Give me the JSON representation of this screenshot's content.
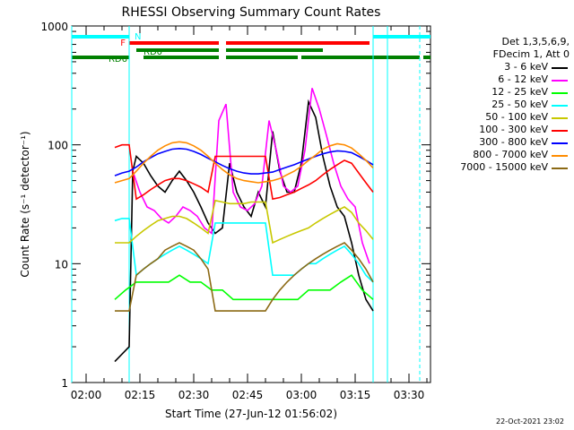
{
  "chart_data": {
    "type": "line",
    "title": "RHESSI Observing Summary Count Rates",
    "xlabel": "Start Time (27-Jun-12 01:56:02)",
    "ylabel": "Count Rate (s⁻¹ detector⁻¹)",
    "ylog": true,
    "ylim": [
      1,
      1000
    ],
    "xlim_minutes_after_01_56": [
      0,
      100
    ],
    "yticks": [
      "1",
      "10",
      "100",
      "1000"
    ],
    "xtick_labels": [
      "02:00",
      "02:15",
      "02:30",
      "02:45",
      "03:00",
      "03:15",
      "03:30"
    ],
    "xtick_minutes": [
      4,
      19,
      34,
      49,
      64,
      79,
      94
    ],
    "legend_header": [
      "Det 1,3,5,6,9,",
      "FDecim 1, Att 0"
    ],
    "series": [
      {
        "name": "3 - 6 keV",
        "color": "#000000",
        "x": [
          12,
          16,
          17,
          18,
          20,
          22,
          24,
          26,
          28,
          30,
          32,
          34,
          36,
          38,
          40,
          42,
          44,
          46,
          48,
          50,
          52,
          54,
          56,
          58,
          60,
          62,
          64,
          66,
          68,
          70,
          72,
          74,
          76,
          78,
          80,
          82,
          84
        ],
        "y": [
          1.5,
          2,
          60,
          80,
          70,
          55,
          45,
          40,
          50,
          60,
          50,
          40,
          30,
          22,
          18,
          20,
          70,
          40,
          30,
          25,
          40,
          30,
          130,
          60,
          40,
          40,
          70,
          230,
          170,
          80,
          45,
          30,
          25,
          15,
          8,
          5,
          4
        ]
      },
      {
        "name": "6 - 12 keV",
        "color": "#ff00ff",
        "x": [
          17,
          19,
          21,
          23,
          25,
          27,
          29,
          31,
          33,
          35,
          37,
          39,
          41,
          43,
          45,
          47,
          49,
          51,
          53,
          55,
          57,
          59,
          61,
          63,
          65,
          67,
          69,
          71,
          73,
          75,
          77,
          79,
          81,
          83
        ],
        "y": [
          60,
          40,
          30,
          28,
          24,
          22,
          25,
          30,
          28,
          25,
          20,
          18,
          160,
          220,
          40,
          30,
          28,
          32,
          45,
          160,
          90,
          45,
          40,
          45,
          90,
          300,
          200,
          120,
          70,
          45,
          35,
          30,
          15,
          10
        ]
      },
      {
        "name": "12 - 25 keV",
        "color": "#00ff00",
        "x": [
          12,
          15,
          18,
          21,
          24,
          27,
          30,
          33,
          36,
          39,
          42,
          45,
          48,
          51,
          54,
          57,
          60,
          63,
          66,
          69,
          72,
          75,
          78,
          81,
          84
        ],
        "y": [
          5,
          6,
          7,
          7,
          7,
          7,
          8,
          7,
          7,
          6,
          6,
          5,
          5,
          5,
          5,
          5,
          5,
          5,
          6,
          6,
          6,
          7,
          8,
          6,
          5
        ]
      },
      {
        "name": "25 - 50 keV",
        "color": "#00ffff",
        "x": [
          12,
          14,
          16,
          18,
          20,
          22,
          24,
          26,
          28,
          30,
          32,
          34,
          36,
          38,
          40,
          42,
          44,
          46,
          48,
          50,
          52,
          54,
          56,
          58,
          60,
          62,
          64,
          66,
          68,
          70,
          72,
          74,
          76,
          78,
          80,
          82,
          84
        ],
        "y": [
          23,
          24,
          24,
          8,
          9,
          10,
          11,
          12,
          13,
          14,
          13,
          12,
          11,
          10,
          22,
          22,
          22,
          22,
          22,
          22,
          22,
          22,
          8,
          8,
          8,
          8,
          9,
          10,
          10,
          11,
          12,
          13,
          14,
          12,
          10,
          8,
          7
        ]
      },
      {
        "name": "50 - 100 keV",
        "color": "#c8c800",
        "x": [
          12,
          14,
          16,
          18,
          20,
          22,
          24,
          26,
          28,
          30,
          32,
          34,
          36,
          38,
          40,
          42,
          44,
          46,
          48,
          50,
          52,
          54,
          56,
          58,
          60,
          62,
          64,
          66,
          68,
          70,
          72,
          74,
          76,
          78,
          80,
          82,
          84
        ],
        "y": [
          15,
          15,
          15,
          17,
          19,
          21,
          23,
          24,
          25,
          25,
          24,
          22,
          20,
          18,
          34,
          33,
          32,
          32,
          32,
          33,
          33,
          33,
          15,
          16,
          17,
          18,
          19,
          20,
          22,
          24,
          26,
          28,
          30,
          27,
          22,
          19,
          16
        ]
      },
      {
        "name": "100 - 300 keV",
        "color": "#ff0000",
        "x": [
          12,
          14,
          16,
          18,
          20,
          22,
          24,
          26,
          28,
          30,
          32,
          34,
          36,
          38,
          40,
          42,
          44,
          46,
          48,
          50,
          52,
          54,
          56,
          58,
          60,
          62,
          64,
          66,
          68,
          70,
          72,
          74,
          76,
          78,
          80,
          82,
          84
        ],
        "y": [
          95,
          100,
          100,
          35,
          38,
          42,
          46,
          50,
          52,
          52,
          50,
          47,
          44,
          40,
          80,
          80,
          80,
          80,
          80,
          80,
          80,
          80,
          35,
          36,
          38,
          40,
          43,
          46,
          50,
          56,
          62,
          68,
          74,
          70,
          58,
          48,
          40
        ]
      },
      {
        "name": "300 - 800 keV",
        "color": "#0000ff",
        "x": [
          12,
          14,
          16,
          18,
          20,
          22,
          24,
          26,
          28,
          30,
          32,
          34,
          36,
          38,
          40,
          42,
          44,
          46,
          48,
          50,
          52,
          54,
          56,
          58,
          60,
          62,
          64,
          66,
          68,
          70,
          72,
          74,
          76,
          78,
          80,
          82,
          84
        ],
        "y": [
          55,
          58,
          60,
          65,
          72,
          78,
          84,
          88,
          92,
          93,
          92,
          88,
          83,
          77,
          72,
          67,
          63,
          60,
          58,
          57,
          57,
          58,
          59,
          62,
          65,
          68,
          72,
          76,
          80,
          84,
          87,
          89,
          88,
          86,
          80,
          74,
          68
        ]
      },
      {
        "name": "800 - 7000 keV",
        "color": "#ff8c00",
        "x": [
          12,
          14,
          16,
          18,
          20,
          22,
          24,
          26,
          28,
          30,
          32,
          34,
          36,
          38,
          40,
          42,
          44,
          46,
          48,
          50,
          52,
          54,
          56,
          58,
          60,
          62,
          64,
          66,
          68,
          70,
          72,
          74,
          76,
          78,
          80,
          82,
          84
        ],
        "y": [
          48,
          50,
          52,
          60,
          70,
          80,
          90,
          98,
          104,
          106,
          104,
          98,
          90,
          80,
          70,
          62,
          56,
          52,
          50,
          49,
          48,
          49,
          50,
          52,
          56,
          60,
          66,
          74,
          82,
          92,
          98,
          102,
          100,
          94,
          84,
          74,
          64
        ]
      },
      {
        "name": "7000 - 15000 keV",
        "color": "#8b6914",
        "x": [
          12,
          14,
          16,
          18,
          20,
          22,
          24,
          26,
          28,
          30,
          32,
          34,
          36,
          38,
          40,
          42,
          44,
          46,
          48,
          50,
          52,
          54,
          56,
          58,
          60,
          62,
          64,
          66,
          68,
          70,
          72,
          74,
          76,
          78,
          80,
          82,
          84
        ],
        "y": [
          4,
          4,
          4,
          8,
          9,
          10,
          11,
          13,
          14,
          15,
          14,
          13,
          11,
          9,
          4,
          4,
          4,
          4,
          4,
          4,
          4,
          4,
          5,
          6,
          7,
          8,
          9,
          10,
          11,
          12,
          13,
          14,
          15,
          13,
          11,
          9,
          7
        ]
      }
    ],
    "state_bars": [
      {
        "label": "N",
        "color": "#00ffff",
        "segments": [
          [
            0,
            16
          ],
          [
            84,
            100
          ]
        ]
      },
      {
        "label": "F",
        "color": "#ff0000",
        "segments": [
          [
            16,
            41
          ],
          [
            43,
            83
          ]
        ]
      },
      {
        "label": "RD0",
        "color": "#008000",
        "segments": [
          [
            18,
            41
          ],
          [
            43,
            70
          ]
        ]
      },
      {
        "label": "RD6",
        "color": "#008000",
        "segments": [
          [
            0,
            16
          ],
          [
            20,
            41
          ],
          [
            43,
            63
          ],
          [
            64,
            97
          ],
          [
            98,
            100
          ]
        ]
      }
    ],
    "event_lines_minutes": [
      16,
      84,
      88
    ],
    "event_line_minutes_dashed": [
      16,
      97
    ]
  },
  "footer": {
    "timestamp": "22-Oct-2021 23:02"
  }
}
